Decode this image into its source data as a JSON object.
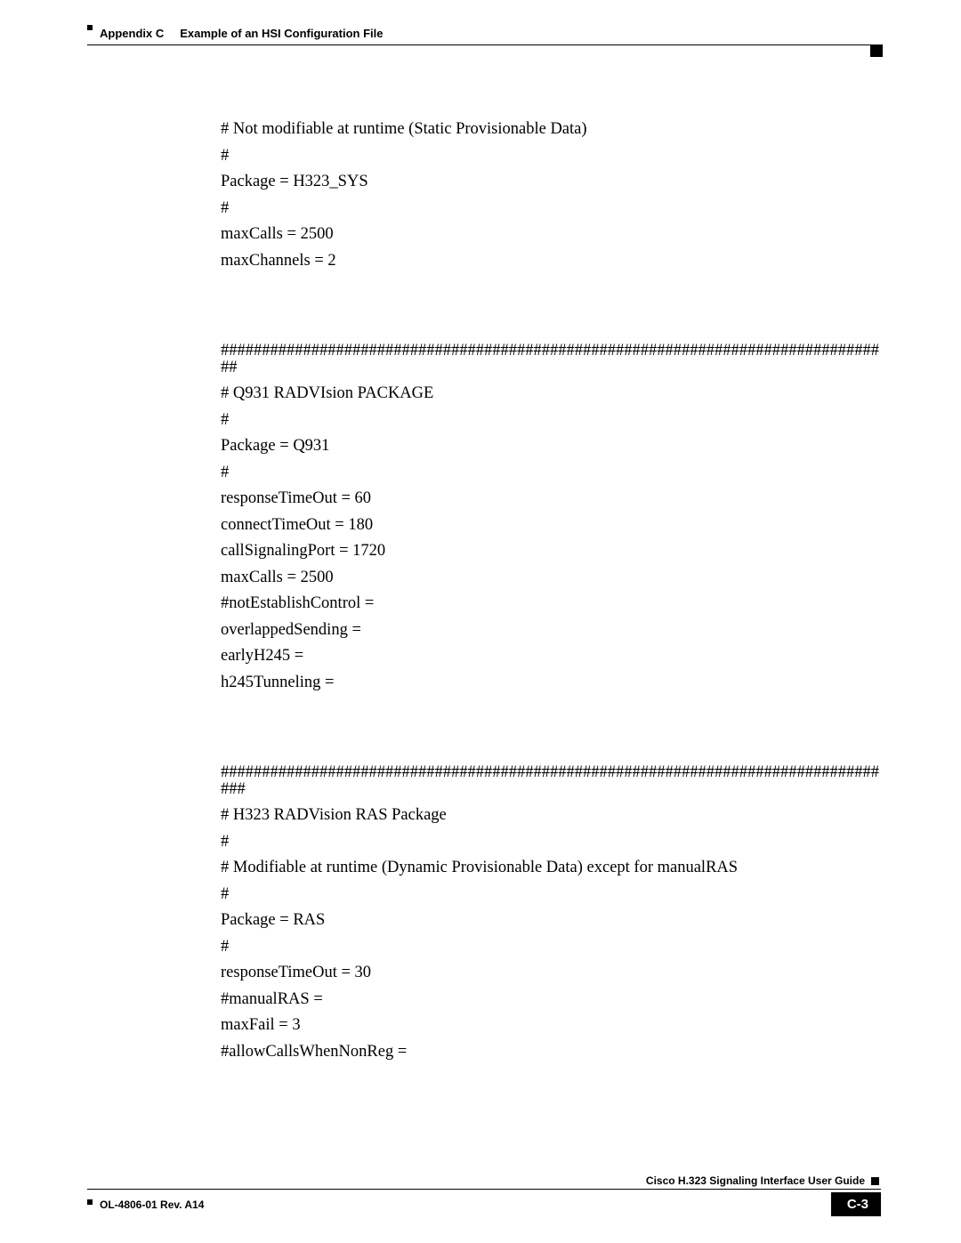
{
  "header": {
    "appendix_label": "Appendix C",
    "appendix_title": "Example of an HSI Configuration File"
  },
  "config_text": {
    "section1": [
      "# Not modifiable at runtime (Static Provisionable Data)",
      "#",
      "Package = H323_SYS",
      "#",
      "maxCalls = 2500",
      "maxChannels = 2"
    ],
    "section2": [
      "################################################################################",
      "##",
      "# Q931 RADVIsion PACKAGE",
      "#",
      "Package = Q931",
      "#",
      "responseTimeOut = 60",
      "connectTimeOut = 180",
      "callSignalingPort = 1720",
      "maxCalls = 2500",
      "#notEstablishControl =",
      "overlappedSending =",
      "earlyH245 =",
      "h245Tunneling ="
    ],
    "section3": [
      "################################################################################",
      "###",
      "# H323 RADVision RAS Package",
      "#",
      "# Modifiable at runtime (Dynamic Provisionable Data) except for manualRAS",
      "#",
      "Package = RAS",
      "#",
      "responseTimeOut = 30",
      "#manualRAS =",
      "maxFail = 3",
      "#allowCallsWhenNonReg ="
    ]
  },
  "footer": {
    "guide_title": "Cisco H.323 Signaling Interface User Guide",
    "doc_rev": "OL-4806-01 Rev. A14",
    "page_number": "C-3"
  }
}
